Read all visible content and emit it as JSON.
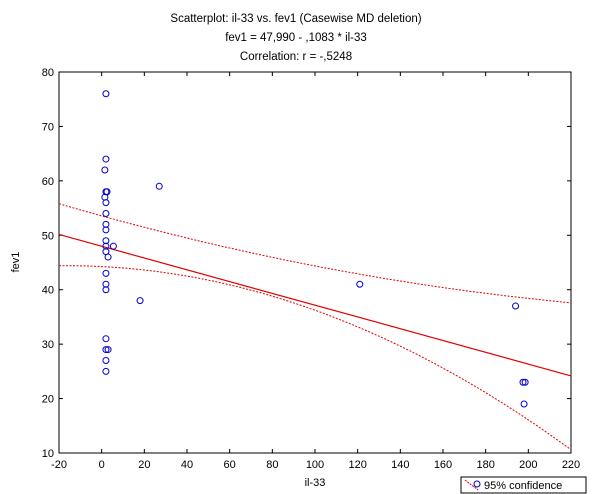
{
  "chart_data": {
    "type": "scatter",
    "title": "Scatterplot: il-33 vs. fev1 (Casewise MD deletion)",
    "subtitle_equation": "fev1 = 47,990 - ,1083  * il-33",
    "subtitle_correlation": "Correlation: r = -,5248",
    "xlabel": "il-33",
    "ylabel": "fev1",
    "xlim": [
      -20,
      220
    ],
    "ylim": [
      10,
      80
    ],
    "x_ticks": [
      "-20",
      "0",
      "20",
      "40",
      "60",
      "80",
      "100",
      "120",
      "140",
      "160",
      "180",
      "200",
      "220"
    ],
    "y_ticks": [
      "10",
      "20",
      "30",
      "40",
      "50",
      "60",
      "70",
      "80"
    ],
    "grid": false,
    "legend": {
      "placement": "bottom-right",
      "label": "95% confidence"
    },
    "points": [
      {
        "x": 2,
        "y": 76
      },
      {
        "x": 2,
        "y": 64
      },
      {
        "x": 1.5,
        "y": 62
      },
      {
        "x": 2,
        "y": 58
      },
      {
        "x": 2.5,
        "y": 58
      },
      {
        "x": 1.5,
        "y": 57
      },
      {
        "x": 2,
        "y": 56
      },
      {
        "x": 2,
        "y": 54
      },
      {
        "x": 2,
        "y": 52
      },
      {
        "x": 2,
        "y": 51
      },
      {
        "x": 2,
        "y": 49
      },
      {
        "x": 2,
        "y": 48
      },
      {
        "x": 5.5,
        "y": 48
      },
      {
        "x": 2,
        "y": 47
      },
      {
        "x": 3,
        "y": 46
      },
      {
        "x": 2,
        "y": 43
      },
      {
        "x": 2,
        "y": 41
      },
      {
        "x": 2,
        "y": 40
      },
      {
        "x": 2,
        "y": 31
      },
      {
        "x": 2,
        "y": 29
      },
      {
        "x": 3,
        "y": 29
      },
      {
        "x": 2,
        "y": 27
      },
      {
        "x": 2,
        "y": 25
      },
      {
        "x": 27,
        "y": 59
      },
      {
        "x": 18,
        "y": 38
      },
      {
        "x": 121,
        "y": 41
      },
      {
        "x": 194,
        "y": 37
      },
      {
        "x": 197.5,
        "y": 23
      },
      {
        "x": 198.5,
        "y": 23
      },
      {
        "x": 198,
        "y": 19
      }
    ],
    "regression": {
      "intercept": 47.99,
      "slope": -0.1083
    },
    "confidence_band": {
      "x_mean": 40,
      "upper_at": {
        "x_min": 55.8,
        "x_mean": 49.5,
        "x_max": 37.6
      },
      "lower_at": {
        "x_min": 44.4,
        "x_mean": 42.5,
        "x_max": 10.6
      }
    },
    "colors": {
      "points": "#0000cc",
      "regression": "#e00000",
      "confidence": "#e00000",
      "axes": "#000000"
    }
  }
}
